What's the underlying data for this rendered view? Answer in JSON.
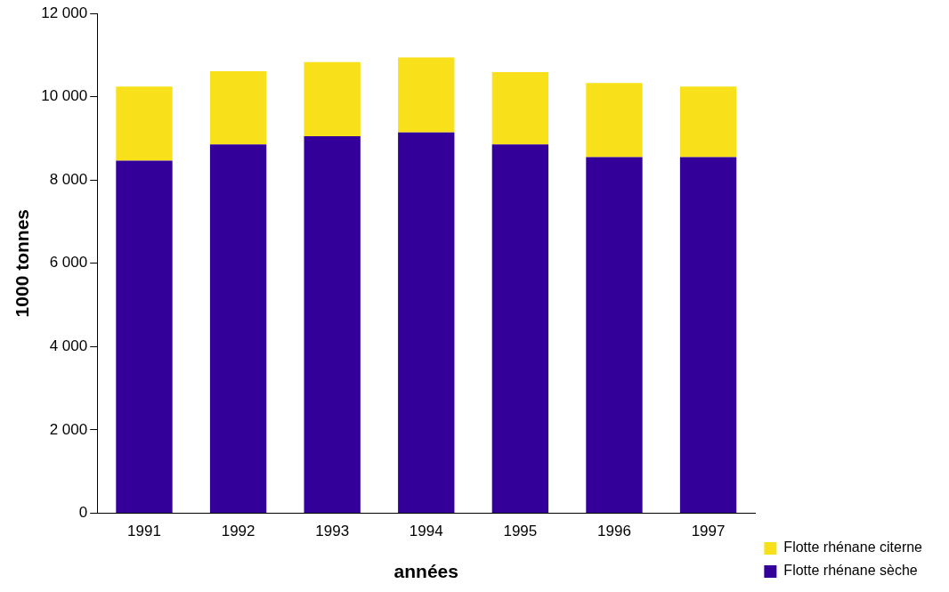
{
  "chart_data": {
    "type": "bar",
    "stacked": true,
    "xlabel": "années",
    "ylabel": "1000 tonnes",
    "categories": [
      "1991",
      "1992",
      "1993",
      "1994",
      "1995",
      "1996",
      "1997"
    ],
    "series": [
      {
        "name": "Flotte rhénane sèche",
        "color": "#330099",
        "values": [
          8460,
          8850,
          9050,
          9140,
          8850,
          8550,
          8550
        ]
      },
      {
        "name": "Flotte rhénane citerne",
        "color": "#f8e01a",
        "values": [
          1780,
          1760,
          1780,
          1800,
          1740,
          1780,
          1690
        ]
      }
    ],
    "ylim": [
      0,
      12000
    ],
    "yticks": [
      0,
      {
        "value": 2000,
        "label": "2 000"
      },
      {
        "value": 4000,
        "label": "4 000"
      },
      {
        "value": 6000,
        "label": "6 000"
      },
      {
        "value": 8000,
        "label": "8 000"
      },
      {
        "value": 10000,
        "label": "10 000"
      },
      {
        "value": 12000,
        "label": "12 000"
      }
    ],
    "grid": false,
    "legend": "bottom right"
  }
}
